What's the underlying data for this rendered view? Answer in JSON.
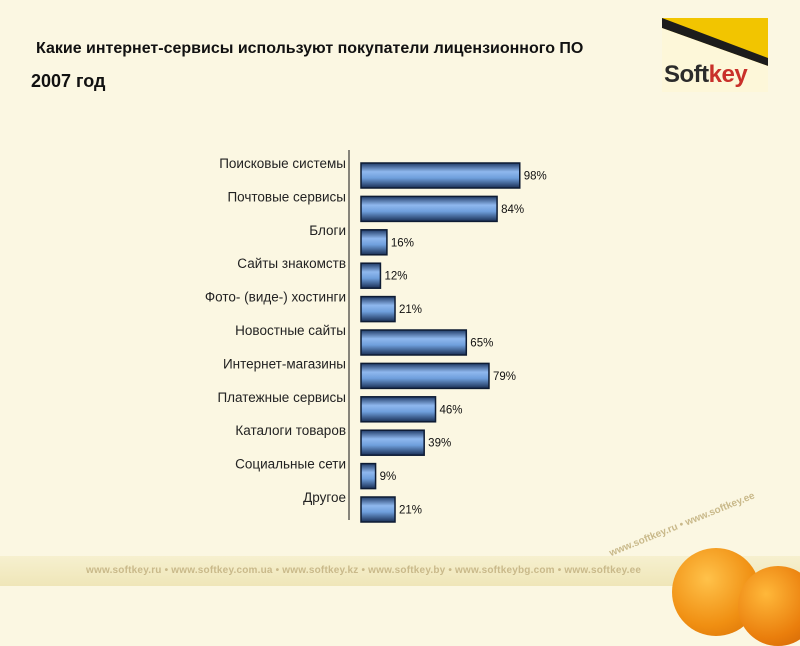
{
  "header": {
    "title": "Какие интернет-сервисы используют покупатели лицензионного ПО",
    "subtitle": "2007 год"
  },
  "logo": {
    "text_main": "Soft",
    "text_accent": "key",
    "colors": {
      "yellow": "#f2c500",
      "dark": "#2b2b2b",
      "accent": "#c9302a"
    }
  },
  "footer": {
    "links": "www.softkey.ru • www.softkey.com.ua • www.softkey.kz • www.softkey.by • www.softkeybg.com • www.softkey.ee",
    "diagonal": "www.softkey.ru • www.softkey.ee"
  },
  "chart_data": {
    "type": "bar",
    "orientation": "horizontal",
    "categories": [
      "Поисковые системы",
      "Почтовые сервисы",
      "Блоги",
      "Сайты знакомств",
      "Фото- (виде-) хостинги",
      "Новостные сайты",
      "Интернет-магазины",
      "Платежные сервисы",
      "Каталоги товаров",
      "Социальные сети",
      "Другое"
    ],
    "values": [
      98,
      84,
      16,
      12,
      21,
      65,
      79,
      46,
      39,
      9,
      21
    ],
    "data_labels": [
      "98%",
      "84%",
      "16%",
      "12%",
      "21%",
      "65%",
      "79%",
      "46%",
      "39%",
      "9%",
      "21%"
    ],
    "unit": "%",
    "xlim": [
      0,
      100
    ],
    "grid": false,
    "legend": "none",
    "bar_color": "#6f9fdc",
    "bar_edge": "#0d1b33"
  }
}
